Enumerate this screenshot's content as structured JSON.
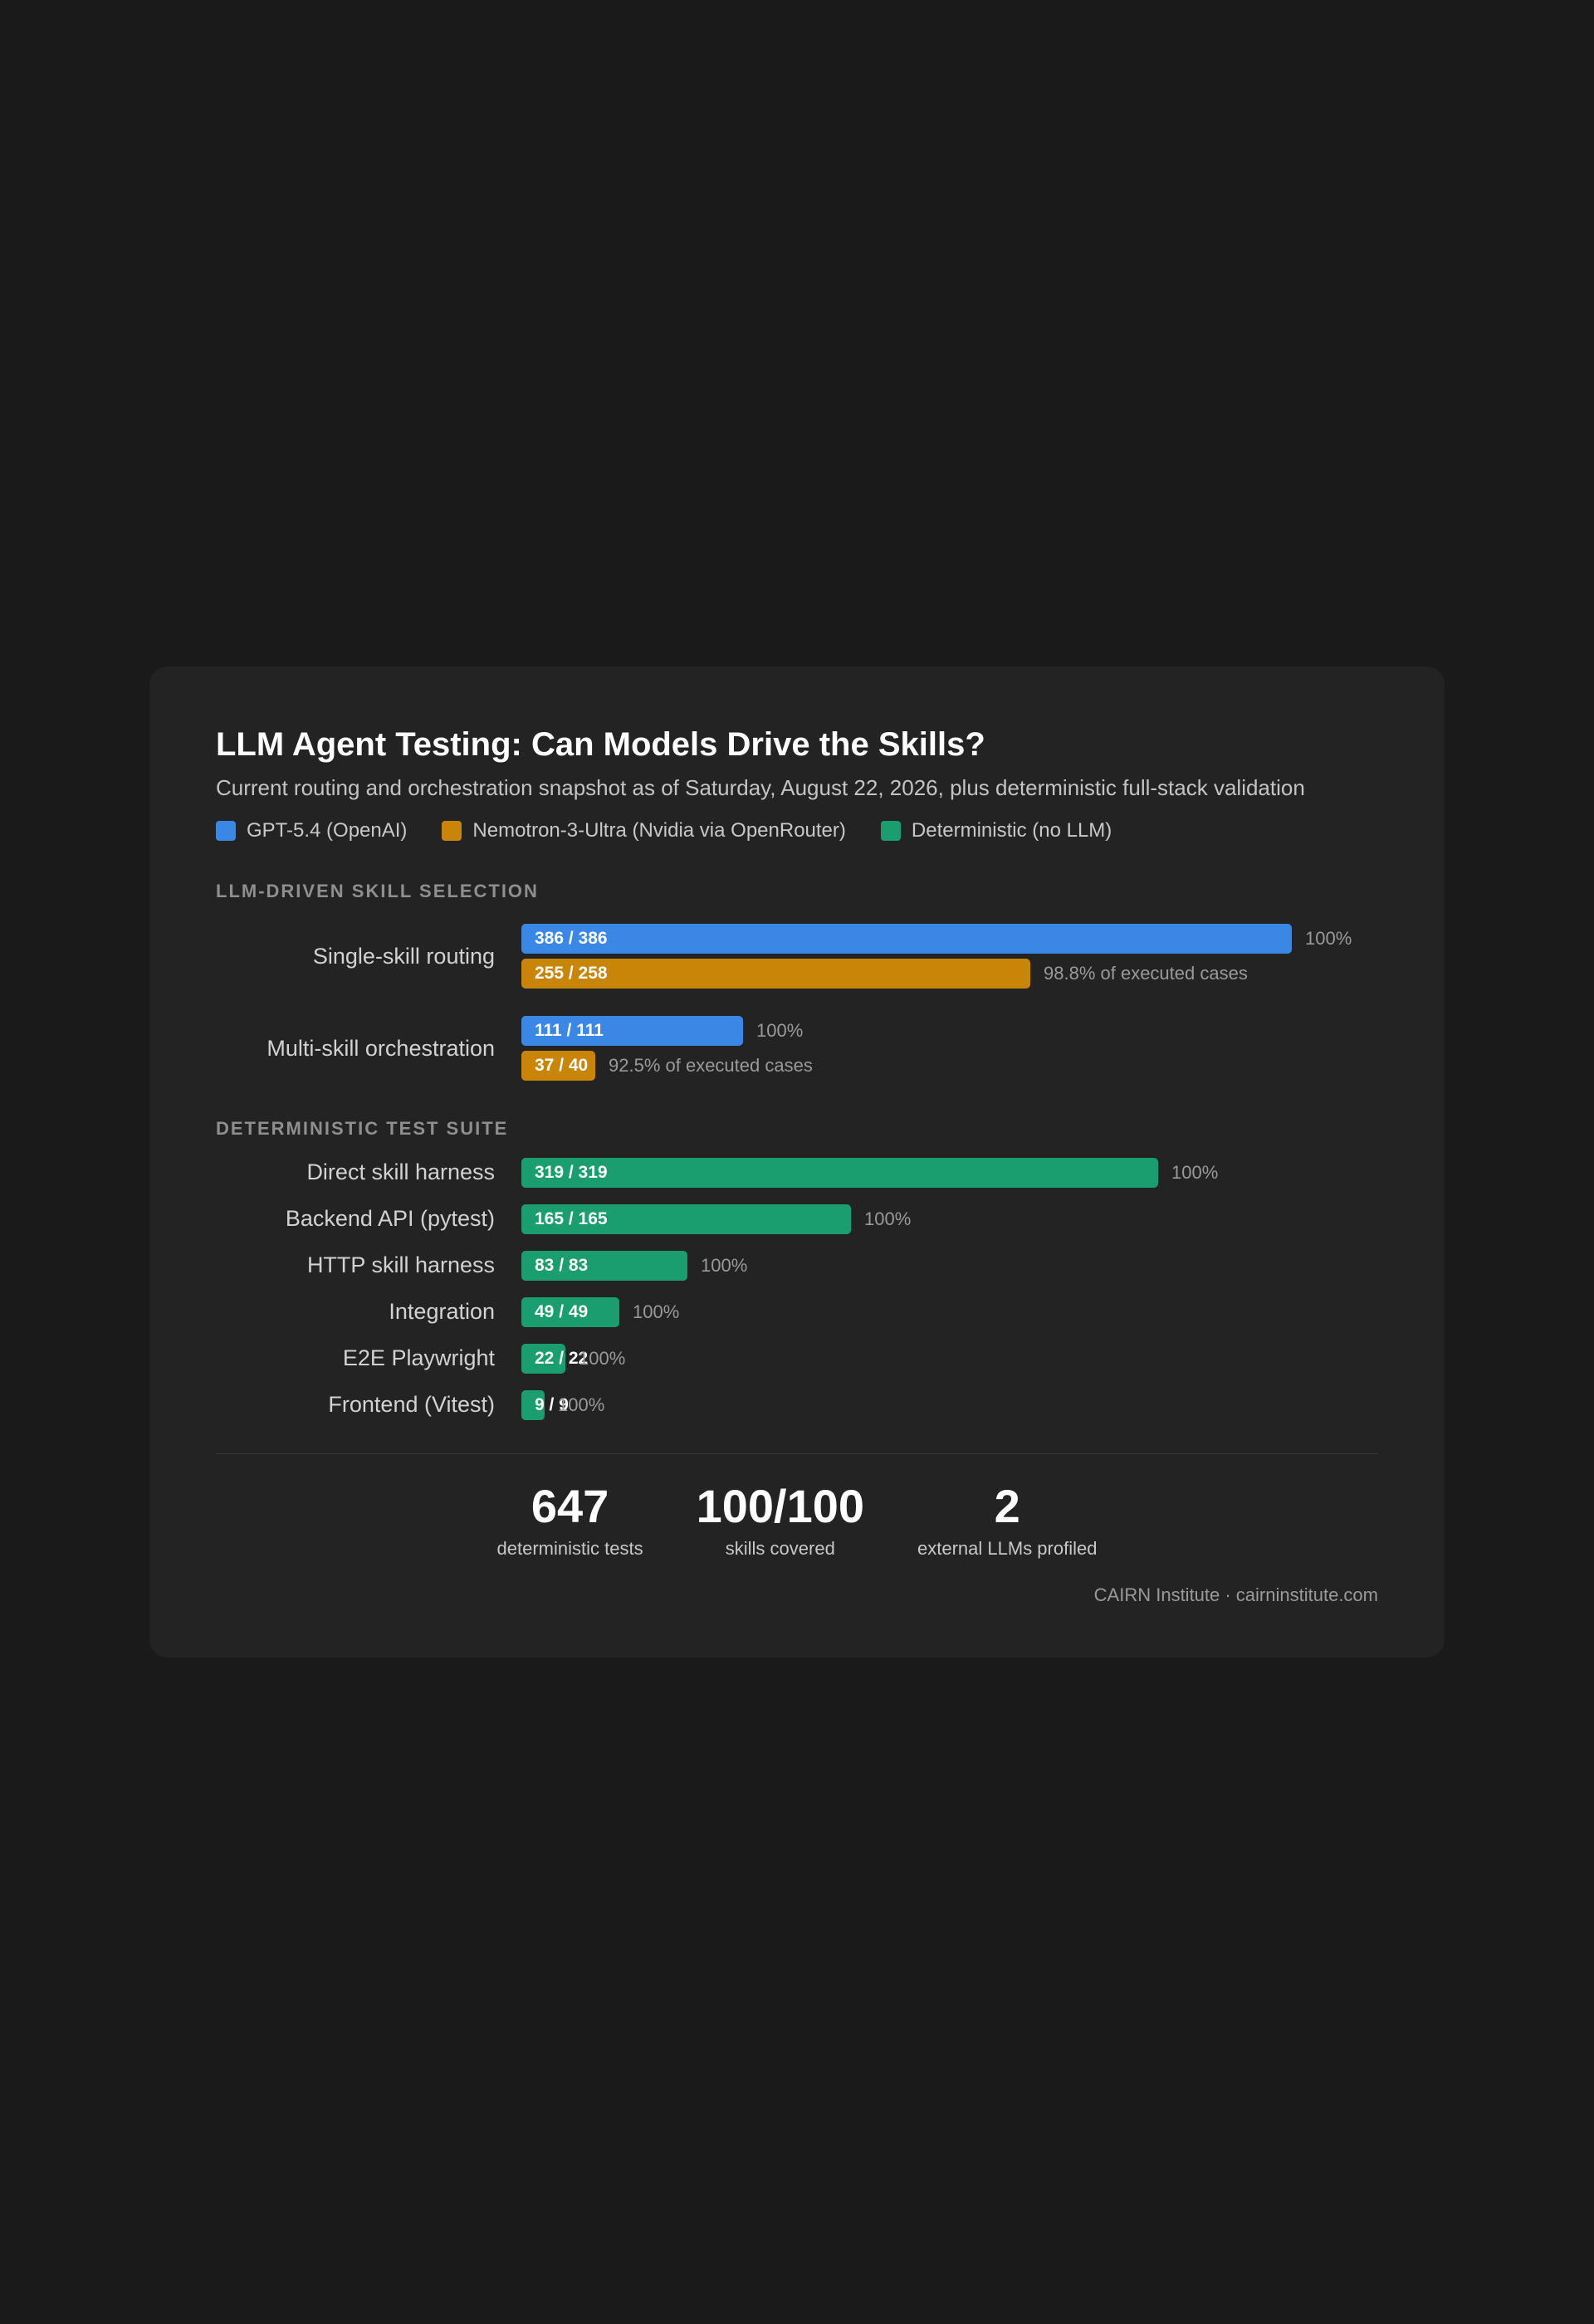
{
  "title": "LLM Agent Testing: Can Models Drive the Skills?",
  "subtitle": "Current routing and orchestration snapshot as of Saturday, August 22, 2026, plus deterministic full-stack validation",
  "legend": [
    {
      "label": "GPT-5.4 (OpenAI)",
      "color": "#3b87e6"
    },
    {
      "label": "Nemotron-3-Ultra (Nvidia via OpenRouter)",
      "color": "#c98508"
    },
    {
      "label": "Deterministic (no LLM)",
      "color": "#1a9e70"
    }
  ],
  "sections": {
    "llm": "LLM-DRIVEN SKILL SELECTION",
    "deterministic": "DETERMINISTIC TEST SUITE"
  },
  "chart_data": {
    "type": "bar",
    "orientation": "horizontal",
    "llm_groups": [
      {
        "label": "Single-skill routing",
        "bars": [
          {
            "series": "GPT-5.4 (OpenAI)",
            "passed": 386,
            "total": 386,
            "bar_label": "386 / 386",
            "note": "100%",
            "color": "#3b87e6"
          },
          {
            "series": "Nemotron-3-Ultra (Nvidia via OpenRouter)",
            "passed": 255,
            "total": 258,
            "bar_label": "255 / 258",
            "note": "98.8% of executed cases",
            "color": "#c98508"
          }
        ]
      },
      {
        "label": "Multi-skill orchestration",
        "bars": [
          {
            "series": "GPT-5.4 (OpenAI)",
            "passed": 111,
            "total": 111,
            "bar_label": "111 / 111",
            "note": "100%",
            "color": "#3b87e6"
          },
          {
            "series": "Nemotron-3-Ultra (Nvidia via OpenRouter)",
            "passed": 37,
            "total": 40,
            "bar_label": "37 / 40",
            "note": "92.5% of executed cases",
            "color": "#c98508"
          }
        ]
      }
    ],
    "deterministic_rows": [
      {
        "label": "Direct skill harness",
        "passed": 319,
        "total": 319,
        "bar_label": "319 / 319",
        "note": "100%",
        "color": "#1a9e70"
      },
      {
        "label": "Backend API (pytest)",
        "passed": 165,
        "total": 165,
        "bar_label": "165 / 165",
        "note": "100%",
        "color": "#1a9e70"
      },
      {
        "label": "HTTP skill harness",
        "passed": 83,
        "total": 83,
        "bar_label": "83 / 83",
        "note": "100%",
        "color": "#1a9e70"
      },
      {
        "label": "Integration",
        "passed": 49,
        "total": 49,
        "bar_label": "49 / 49",
        "note": "100%",
        "color": "#1a9e70"
      },
      {
        "label": "E2E Playwright",
        "passed": 22,
        "total": 22,
        "bar_label": "22 / 22",
        "note": "100%",
        "color": "#1a9e70"
      },
      {
        "label": "Frontend (Vitest)",
        "passed": 9,
        "total": 9,
        "bar_label": "9 / 9",
        "note": "100%",
        "color": "#1a9e70"
      }
    ]
  },
  "stats": [
    {
      "value": "647",
      "label": "deterministic tests"
    },
    {
      "value": "100/100",
      "label": "skills covered"
    },
    {
      "value": "2",
      "label": "external LLMs profiled"
    }
  ],
  "footer": "CAIRN Institute · cairninstitute.com"
}
